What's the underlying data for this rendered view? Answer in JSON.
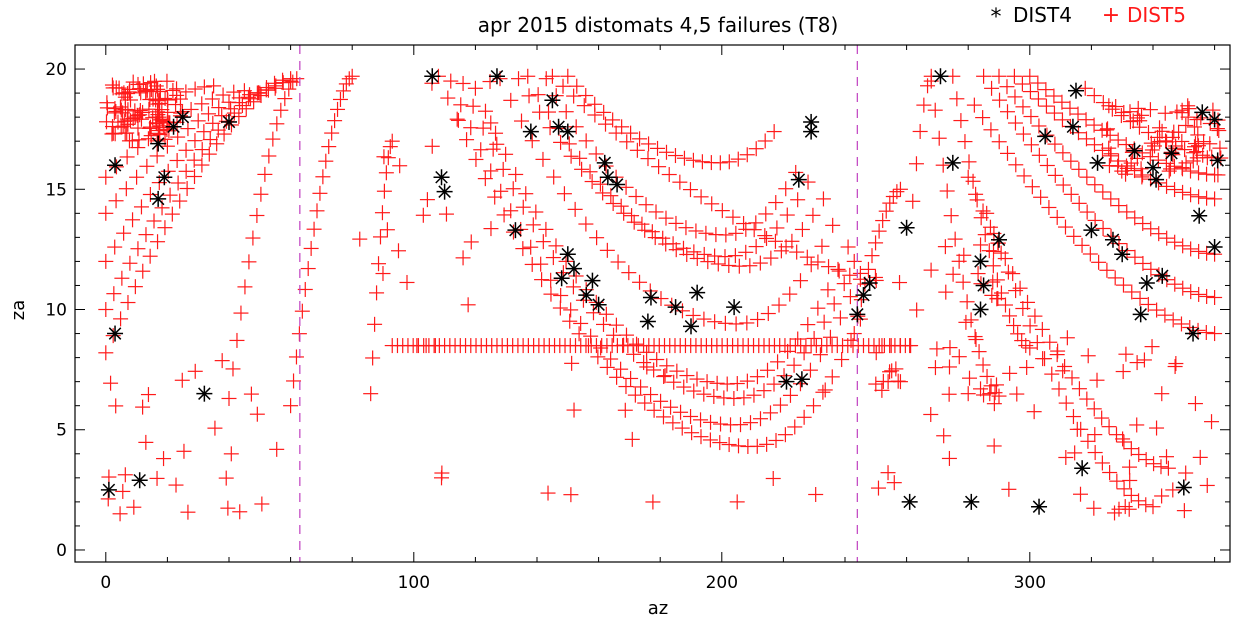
{
  "chart_data": {
    "type": "scatter",
    "title": "apr 2015  distomats 4,5 failures (T8)",
    "xlabel": "az",
    "ylabel": "za",
    "xlim": [
      -10,
      365
    ],
    "ylim": [
      -0.5,
      21
    ],
    "xticks": [
      0,
      100,
      200,
      300
    ],
    "yticks": [
      0,
      5,
      10,
      15,
      20
    ],
    "grid": false,
    "legend_position": "top-right",
    "reference_lines_x": [
      63,
      244
    ],
    "colors": {
      "DIST4": "#000000",
      "DIST5": "#ff1a1a",
      "reference": "#c040c0"
    },
    "series": [
      {
        "name": "DIST4",
        "marker": "asterisk",
        "points": [
          [
            1,
            2.5
          ],
          [
            11,
            2.9
          ],
          [
            3,
            9
          ],
          [
            32,
            6.5
          ],
          [
            3,
            16
          ],
          [
            17,
            14.6
          ],
          [
            19,
            15.5
          ],
          [
            17,
            16.9
          ],
          [
            22,
            17.6
          ],
          [
            25,
            18
          ],
          [
            40,
            17.8
          ],
          [
            106,
            19.7
          ],
          [
            109,
            15.5
          ],
          [
            110,
            14.9
          ],
          [
            127,
            19.7
          ],
          [
            138,
            17.4
          ],
          [
            145,
            18.7
          ],
          [
            147,
            17.6
          ],
          [
            150,
            17.4
          ],
          [
            133,
            13.3
          ],
          [
            148,
            11.3
          ],
          [
            150,
            12.3
          ],
          [
            152,
            11.7
          ],
          [
            156,
            10.6
          ],
          [
            158,
            11.2
          ],
          [
            160,
            10.2
          ],
          [
            162,
            16.1
          ],
          [
            163,
            15.5
          ],
          [
            166,
            15.2
          ],
          [
            176,
            9.5
          ],
          [
            177,
            10.5
          ],
          [
            185,
            10.1
          ],
          [
            192,
            10.7
          ],
          [
            190,
            9.3
          ],
          [
            204,
            10.1
          ],
          [
            221,
            7
          ],
          [
            226,
            7.1
          ],
          [
            229,
            17.8
          ],
          [
            229,
            17.4
          ],
          [
            225,
            15.4
          ],
          [
            244,
            9.8
          ],
          [
            246,
            10.6
          ],
          [
            248,
            11.1
          ],
          [
            260,
            13.4
          ],
          [
            261,
            2
          ],
          [
            271,
            19.7
          ],
          [
            275,
            16.1
          ],
          [
            281,
            2
          ],
          [
            284,
            12
          ],
          [
            285,
            11
          ],
          [
            284,
            10
          ],
          [
            290,
            12.9
          ],
          [
            303,
            1.8
          ],
          [
            305,
            17.2
          ],
          [
            315,
            19.1
          ],
          [
            314,
            17.6
          ],
          [
            317,
            3.4
          ],
          [
            322,
            16.1
          ],
          [
            320,
            13.3
          ],
          [
            327,
            12.9
          ],
          [
            330,
            12.3
          ],
          [
            334,
            16.6
          ],
          [
            336,
            9.8
          ],
          [
            338,
            11.1
          ],
          [
            340,
            15.9
          ],
          [
            341,
            15.4
          ],
          [
            343,
            11.4
          ],
          [
            346,
            16.5
          ],
          [
            350,
            2.6
          ],
          [
            353,
            9
          ],
          [
            355,
            13.9
          ],
          [
            356,
            18.2
          ],
          [
            360,
            12.6
          ],
          [
            361,
            16.2
          ],
          [
            360,
            17.9
          ]
        ]
      },
      {
        "name": "DIST5",
        "marker": "plus",
        "arcs": [
          {
            "x0": 0,
            "x1": 60,
            "y0": 8.2,
            "y1": 19.5,
            "n": 26
          },
          {
            "x0": 0,
            "x1": 60,
            "y0": 10,
            "y1": 19.6,
            "n": 24
          },
          {
            "x0": 0,
            "x1": 55,
            "y0": 12,
            "y1": 19.2,
            "n": 20
          },
          {
            "x0": 0,
            "x1": 50,
            "y0": 14,
            "y1": 19,
            "n": 16
          },
          {
            "x0": 0,
            "x1": 45,
            "y0": 15.5,
            "y1": 19.1,
            "n": 14
          },
          {
            "x0": 2,
            "x1": 35,
            "y0": 17.3,
            "y1": 19.3,
            "n": 12
          },
          {
            "x0": 40,
            "x1": 62,
            "y0": 6.3,
            "y1": 19.6,
            "n": 18
          },
          {
            "x0": 60,
            "x1": 80,
            "y0": 6,
            "y1": 19.7,
            "n": 22
          },
          {
            "x0": 86,
            "x1": 93,
            "y0": 6.5,
            "y1": 17,
            "n": 12
          },
          {
            "x0": 108,
            "x1": 245,
            "y0": 19.7,
            "y1": 9.6,
            "ymin": 4.3,
            "n": 46
          },
          {
            "x0": 112,
            "x1": 245,
            "y0": 19.5,
            "y1": 11.5,
            "ymin": 5.2,
            "n": 42
          },
          {
            "x0": 116,
            "x1": 243,
            "y0": 19.4,
            "y1": 12,
            "ymin": 6.3,
            "n": 40
          },
          {
            "x0": 120,
            "x1": 241,
            "y0": 19.2,
            "y1": 12.6,
            "ymin": 6.9,
            "n": 38
          },
          {
            "x0": 128,
            "x1": 236,
            "y0": 19.6,
            "y1": 13.5,
            "ymin": 9.4,
            "n": 32
          },
          {
            "x0": 134,
            "x1": 233,
            "y0": 19.6,
            "y1": 14.6,
            "ymin": 11.8,
            "n": 30
          },
          {
            "x0": 137,
            "x1": 228,
            "y0": 19.7,
            "y1": 15.3,
            "ymin": 12.2,
            "n": 28
          },
          {
            "x0": 143,
            "x1": 224,
            "y0": 19.6,
            "y1": 15.7,
            "ymin": 13.1,
            "n": 26
          },
          {
            "x0": 150,
            "x1": 217,
            "y0": 19.7,
            "y1": 17.4,
            "ymin": 16.1,
            "n": 24
          },
          {
            "x0": 145,
            "x1": 245,
            "y0": 19.7,
            "y1": 6,
            "ymin": 9.8,
            "n": 30
          },
          {
            "x0": 243,
            "x1": 258,
            "y0": 9,
            "y1": 15,
            "n": 14
          },
          {
            "x0": 262,
            "x1": 268,
            "y0": 14.5,
            "y1": 19.7,
            "n": 6
          },
          {
            "x0": 268,
            "x1": 290,
            "y0": 19.5,
            "y1": 6.4,
            "n": 18
          },
          {
            "x0": 275,
            "x1": 300,
            "y0": 19.7,
            "y1": 8.4,
            "n": 20
          },
          {
            "x0": 300,
            "x1": 360,
            "y0": 19.7,
            "y1": 15.6,
            "n": 24
          },
          {
            "x0": 295,
            "x1": 360,
            "y0": 19.7,
            "y1": 14.6,
            "n": 26
          },
          {
            "x0": 290,
            "x1": 360,
            "y0": 19.7,
            "y1": 12.3,
            "n": 28
          },
          {
            "x0": 285,
            "x1": 360,
            "y0": 19.7,
            "y1": 10.5,
            "n": 30
          },
          {
            "x0": 282,
            "x1": 360,
            "y0": 18.5,
            "y1": 9,
            "n": 30
          },
          {
            "x0": 280,
            "x1": 345,
            "y0": 15.5,
            "y1": 3.4,
            "n": 28
          },
          {
            "x0": 286,
            "x1": 340,
            "y0": 14,
            "y1": 1.8,
            "n": 24
          },
          {
            "x0": 318,
            "x1": 362,
            "y0": 19.2,
            "y1": 16.3,
            "n": 16
          }
        ],
        "hline": {
          "y": 8.5,
          "x0": 93,
          "x1": 262,
          "step": 1.7
        },
        "clusters": [
          {
            "xmin": 0,
            "xmax": 25,
            "ymin": 17,
            "ymax": 19.5,
            "n": 100
          },
          {
            "xmin": 324,
            "xmax": 362,
            "ymin": 15.5,
            "ymax": 18.5,
            "n": 70
          },
          {
            "xmin": 0,
            "xmax": 60,
            "ymin": 1.2,
            "ymax": 8,
            "n": 28
          },
          {
            "xmin": 100,
            "xmax": 245,
            "ymin": 1.8,
            "ymax": 8,
            "n": 12
          },
          {
            "xmin": 246,
            "xmax": 275,
            "ymin": 2.5,
            "ymax": 13,
            "n": 22
          },
          {
            "xmin": 288,
            "xmax": 362,
            "ymin": 1.5,
            "ymax": 9,
            "n": 44
          },
          {
            "xmin": 82,
            "xmax": 130,
            "ymin": 10,
            "ymax": 19.5,
            "n": 20
          },
          {
            "xmin": 270,
            "xmax": 290,
            "ymin": 6,
            "ymax": 13,
            "n": 20
          }
        ],
        "extra_points": [
          [
            101,
            8.5
          ],
          [
            104,
            8.5
          ],
          [
            107,
            8.5
          ],
          [
            109,
            3
          ],
          [
            151,
            2.3
          ],
          [
            205,
            2
          ],
          [
            250,
            6.9
          ],
          [
            254,
            7
          ],
          [
            258,
            7
          ],
          [
            256,
            2.8
          ],
          [
            280,
            6.5
          ],
          [
            284,
            6.7
          ],
          [
            287,
            6.5
          ],
          [
            261,
            8.5
          ],
          [
            258,
            8.5
          ],
          [
            255,
            8.5
          ],
          [
            252,
            8.5
          ]
        ]
      }
    ]
  }
}
